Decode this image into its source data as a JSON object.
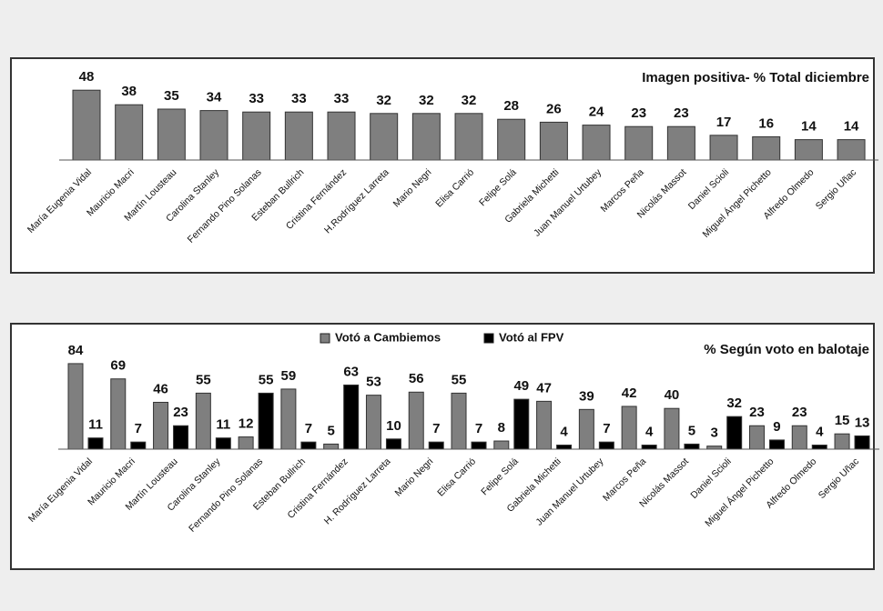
{
  "chart_data": [
    {
      "type": "bar",
      "title": "Imagen positiva- % Total diciembre",
      "categories": [
        "María Eugenia Vidal",
        "Mauricio Macri",
        "Martín Lousteau",
        "Carolina Stanley",
        "Fernando Pino Solanas",
        "Esteban Bullrich",
        "Cristina Fernández",
        "H.Rodríguez Larreta",
        "Mario Negri",
        "Elisa Carrió",
        "Felipe Solá",
        "Gabriela Michetti",
        "Juan Manuel Urtubey",
        "Marcos Peña",
        "Nicolás Massot",
        "Daniel Scioli",
        "Miguel Ángel Pichetto",
        "Alfredo Olmedo",
        "Sergio Uñac"
      ],
      "values": [
        48,
        38,
        35,
        34,
        33,
        33,
        33,
        32,
        32,
        32,
        28,
        26,
        24,
        23,
        23,
        17,
        16,
        14,
        14
      ],
      "color": "#7f7f7f"
    },
    {
      "type": "bar",
      "title": "% Según voto en balotaje",
      "categories": [
        "María Eugenia Vidal",
        "Mauricio Macri",
        "Martín Lousteau",
        "Carolina Stanley",
        "Fernando Pino Solanas",
        "Esteban Bullrich",
        "Cristina Fernández",
        "H. Rodríguez Larreta",
        "Mario Negri",
        "Elisa Carrió",
        "Felipe Solá",
        "Gabriela Michetti",
        "Juan Manuel Urtubey",
        "Marcos Peña",
        "Nicolás Massot",
        "Daniel Scioli",
        "Miguel Ángel Pichetto",
        "Alfredo Olmedo",
        "Sergio Uñac"
      ],
      "series": [
        {
          "name": "Votó a Cambiemos",
          "color": "#7f7f7f",
          "values": [
            84,
            69,
            46,
            55,
            12,
            59,
            5,
            53,
            56,
            55,
            8,
            47,
            39,
            42,
            40,
            3,
            23,
            23,
            15
          ]
        },
        {
          "name": "Votó al FPV",
          "color": "#000000",
          "values": [
            11,
            7,
            23,
            11,
            55,
            7,
            63,
            10,
            7,
            7,
            49,
            4,
            7,
            4,
            5,
            32,
            9,
            4,
            13
          ]
        }
      ]
    }
  ]
}
